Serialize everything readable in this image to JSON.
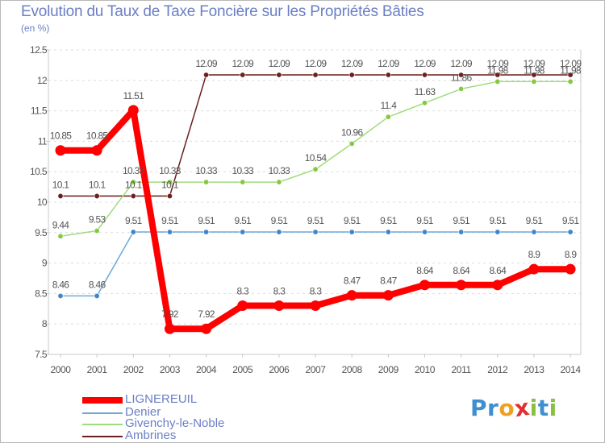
{
  "header": {
    "title": "Evolution du Taux de Taxe Foncière sur les Propriétés Bâties",
    "subtitle": "(en %)"
  },
  "logo": {
    "text": "Proxiti",
    "letters": [
      "P",
      "r",
      "o",
      "x",
      "i",
      "t",
      "i"
    ],
    "colors": [
      "#3f8fd0",
      "#3f8fd0",
      "#f0a020",
      "#e03030",
      "#8ac040",
      "#3f8fd0",
      "#8ac040"
    ]
  },
  "chart_data": {
    "type": "line",
    "title": "Evolution du Taux de Taxe Foncière sur les Propriétés Bâties",
    "subtitle": "(en %)",
    "xlabel": "",
    "ylabel": "",
    "x": [
      "2000",
      "2001",
      "2002",
      "2003",
      "2004",
      "2005",
      "2006",
      "2007",
      "2008",
      "2009",
      "2010",
      "2011",
      "2012",
      "2013",
      "2014"
    ],
    "ylim": [
      7.5,
      12.5
    ],
    "yticks": [
      "7.5",
      "8",
      "8.5",
      "9",
      "9.5",
      "10",
      "10.5",
      "11",
      "11.5",
      "12",
      "12.5"
    ],
    "legend_position": "bottom-left",
    "series": [
      {
        "name": "Ambrines",
        "color": "#6b1f1f",
        "marker_color": "#6b1f1f",
        "values": [
          10.1,
          10.1,
          10.1,
          10.1,
          12.09,
          12.09,
          12.09,
          12.09,
          12.09,
          12.09,
          12.09,
          12.09,
          12.09,
          12.09,
          12.09
        ],
        "labels": [
          "10.1",
          "10.1",
          "10.1",
          "10.1",
          "12.09",
          "12.09",
          "12.09",
          "12.09",
          "12.09",
          "12.09",
          "12.09",
          "12.09",
          "12.09",
          "12.09",
          "12.09"
        ]
      },
      {
        "name": "Givenchy-le-Noble",
        "color": "#9fdc7a",
        "marker_color": "#86c840",
        "values": [
          9.44,
          9.53,
          10.33,
          10.33,
          10.33,
          10.33,
          10.33,
          10.54,
          10.96,
          11.4,
          11.63,
          11.86,
          11.98,
          11.98,
          11.98
        ],
        "labels": [
          "9.44",
          "9.53",
          "10.33",
          "10.33",
          "10.33",
          "10.33",
          "10.33",
          "10.54",
          "10.96",
          "11.4",
          "11.63",
          "11.86",
          "11.98",
          "11.98",
          "11.98"
        ]
      },
      {
        "name": "Denier",
        "color": "#6fa8d8",
        "marker_color": "#3f86c8",
        "values": [
          8.46,
          8.46,
          9.51,
          9.51,
          9.51,
          9.51,
          9.51,
          9.51,
          9.51,
          9.51,
          9.51,
          9.51,
          9.51,
          9.51,
          9.51
        ],
        "labels": [
          "8.46",
          "8.46",
          "9.51",
          "9.51",
          "9.51",
          "9.51",
          "9.51",
          "9.51",
          "9.51",
          "9.51",
          "9.51",
          "9.51",
          "9.51",
          "9.51",
          "9.51"
        ]
      },
      {
        "name": "LIGNEREUIL",
        "color": "#ff0000",
        "marker_color": "#ff0000",
        "values": [
          10.85,
          10.85,
          11.51,
          7.92,
          7.92,
          8.3,
          8.3,
          8.3,
          8.47,
          8.47,
          8.64,
          8.64,
          8.64,
          8.9,
          8.9
        ],
        "labels": [
          "10.85",
          "10.85",
          "11.51",
          "7.92",
          "7.92",
          "8.3",
          "8.3",
          "8.3",
          "8.47",
          "8.47",
          "8.64",
          "8.64",
          "8.64",
          "8.9",
          "8.9"
        ]
      }
    ],
    "legend": [
      {
        "name": "LIGNEREUIL",
        "color": "#ff0000",
        "thick": true
      },
      {
        "name": "Denier",
        "color": "#6fa8d8",
        "thick": false
      },
      {
        "name": "Givenchy-le-Noble",
        "color": "#9fdc7a",
        "thick": false
      },
      {
        "name": "Ambrines",
        "color": "#6b1f1f",
        "thick": false
      }
    ]
  }
}
